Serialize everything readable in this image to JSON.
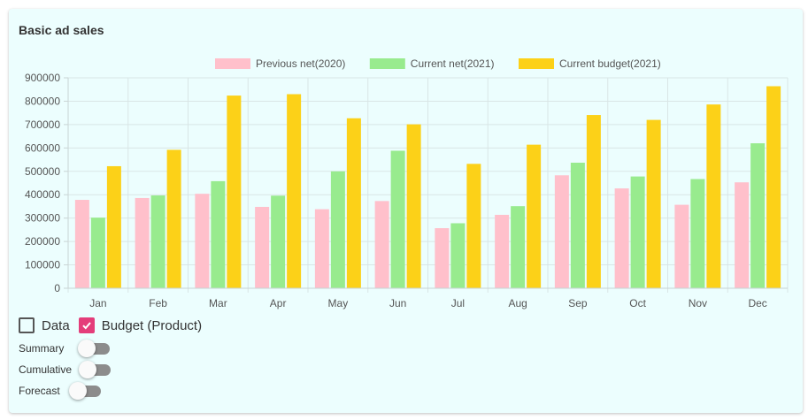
{
  "card": {
    "title": "Basic ad sales"
  },
  "colors": {
    "previous": "#ffc0cb",
    "current": "#98eb8e",
    "budget": "#fcd118",
    "check_accent": "#e43d7a"
  },
  "chart_data": {
    "type": "bar",
    "categories": [
      "Jan",
      "Feb",
      "Mar",
      "Apr",
      "May",
      "Jun",
      "Jul",
      "Aug",
      "Sep",
      "Oct",
      "Nov",
      "Dec"
    ],
    "series": [
      {
        "name": "Previous net(2020)",
        "color": "#ffc0cb",
        "values": [
          378000,
          386000,
          404000,
          348000,
          338000,
          373000,
          257000,
          314000,
          483000,
          427000,
          357000,
          453000
        ]
      },
      {
        "name": "Current net(2021)",
        "color": "#98eb8e",
        "values": [
          302000,
          397000,
          458000,
          396000,
          500000,
          588000,
          278000,
          351000,
          537000,
          478000,
          467000,
          620000
        ]
      },
      {
        "name": "Current budget(2021)",
        "color": "#fcd118",
        "values": [
          522000,
          592000,
          824000,
          830000,
          727000,
          701000,
          532000,
          614000,
          741000,
          720000,
          786000,
          864000
        ]
      }
    ],
    "yticks": [
      "0",
      "100000",
      "200000",
      "300000",
      "400000",
      "500000",
      "600000",
      "700000",
      "800000",
      "900000"
    ],
    "ylim": [
      0,
      900000
    ],
    "grid": true,
    "legend_position": "top-center"
  },
  "controls": {
    "data_label": "Data",
    "data_checked": false,
    "budget_label": "Budget (Product)",
    "budget_checked": true,
    "toggles": [
      {
        "label": "Summary",
        "on": false
      },
      {
        "label": "Cumulative",
        "on": false
      },
      {
        "label": "Forecast",
        "on": false
      }
    ]
  }
}
